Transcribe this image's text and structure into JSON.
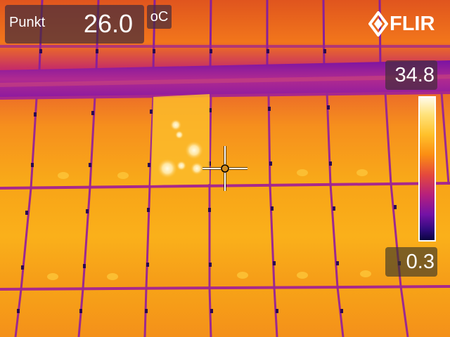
{
  "spot": {
    "label": "Punkt",
    "value": "26.0"
  },
  "unit": "oC",
  "logo": {
    "text": "FLIR",
    "icon": "flir-logo-icon"
  },
  "scale": {
    "max": "34.8",
    "min": "0.3",
    "icon": "color-scale-bar"
  },
  "crosshair": {
    "icon": "crosshair-icon"
  },
  "colors": {
    "panel_base": "#f4a21a",
    "panel_top": "#f07a1e",
    "frame": "#a22a86",
    "roof_band": "#8c1aa0",
    "hotspot": "#fff3c0"
  }
}
